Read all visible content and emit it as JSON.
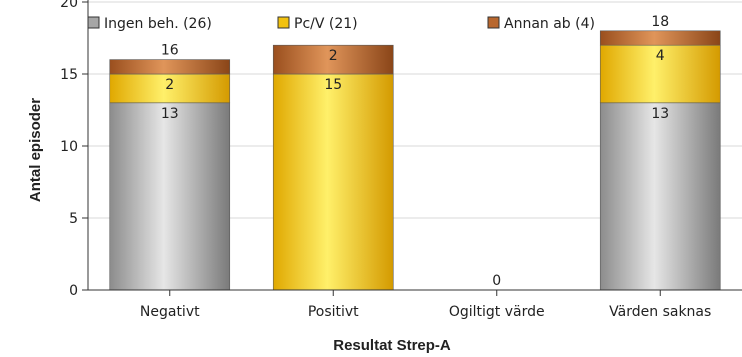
{
  "chart_data": {
    "type": "bar",
    "stacked": true,
    "xlabel": "Resultat Strep-A",
    "ylabel": "Antal episoder",
    "ylim": [
      0,
      20
    ],
    "yticks": [
      0,
      5,
      10,
      15,
      20
    ],
    "grid": true,
    "legend_position": "top",
    "categories": [
      "Negativt",
      "Positivt",
      "Ogiltigt värde",
      "Värden saknas"
    ],
    "totals": [
      16,
      17,
      0,
      18
    ],
    "series": [
      {
        "name": "Ingen beh. (26)",
        "color": "#a6a6a6",
        "values": [
          13,
          0,
          0,
          13
        ]
      },
      {
        "name": "Pc/V (21)",
        "color": "#f2c20f",
        "values": [
          2,
          15,
          0,
          4
        ]
      },
      {
        "name": "Annan ab (4)",
        "color": "#b8672e",
        "values": [
          1,
          2,
          0,
          1
        ]
      }
    ]
  }
}
